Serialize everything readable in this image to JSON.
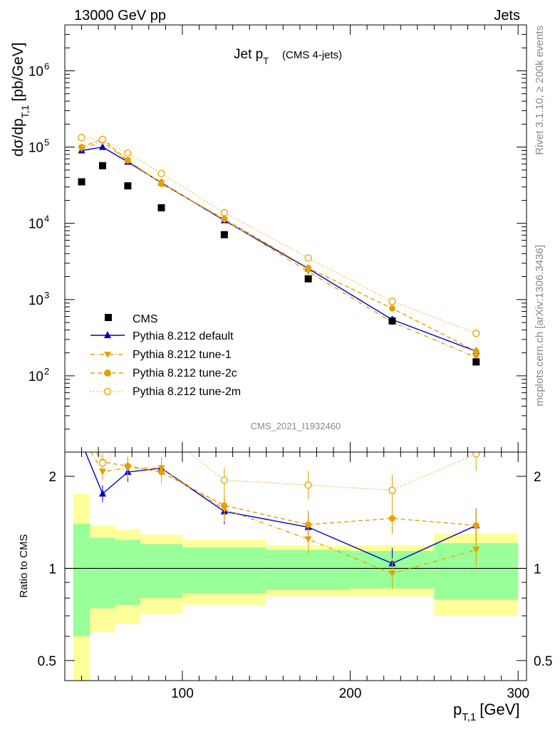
{
  "header": {
    "left": "13000 GeV pp",
    "right": "Jets"
  },
  "side_labels": {
    "rivet": "Rivet 3.1.10, ≥ 200k events",
    "mcplots": "mcplots.cern.ch [arXiv:1306.3436]"
  },
  "colors": {
    "cms": "#000000",
    "default": "#0000cc",
    "tunes": "#e6a000",
    "band_inner": "#99ff99",
    "band_outer": "#ffff99"
  },
  "chart_data": {
    "type": "scatter",
    "title_main": "Jet p",
    "title_sub": "T",
    "title_extra": "(CMS 4-jets)",
    "watermark": "CMS_2021_I1932460",
    "xlabel": {
      "main": "p",
      "sub": "T,1",
      "unit": "[GeV]"
    },
    "ylabel": {
      "main": "dσ/dp",
      "sub": "T,1",
      "unit": "[pb/GeV]"
    },
    "ratio_ylabel": "Ratio to CMS",
    "xlim": [
      30,
      305
    ],
    "ylim": [
      10,
      4000000
    ],
    "ratio_ylim": [
      0.43,
      2.4
    ],
    "x_ticks": [
      100,
      200,
      300
    ],
    "x_tick_labels": [
      "100",
      "200",
      "300"
    ],
    "y_ticks": [
      100,
      1000,
      10000,
      100000,
      1000000
    ],
    "y_tick_labels": [
      {
        "base": "10",
        "exp": "2"
      },
      {
        "base": "10",
        "exp": "3"
      },
      {
        "base": "10",
        "exp": "4"
      },
      {
        "base": "10",
        "exp": "5"
      },
      {
        "base": "10",
        "exp": "6"
      }
    ],
    "ratio_ticks": [
      0.5,
      1,
      2
    ],
    "ratio_tick_labels": [
      "0.5",
      "1",
      "2"
    ],
    "bins": [
      [
        35,
        45
      ],
      [
        45,
        60
      ],
      [
        60,
        75
      ],
      [
        75,
        100
      ],
      [
        100,
        150
      ],
      [
        150,
        200
      ],
      [
        200,
        250
      ],
      [
        250,
        300
      ]
    ],
    "x": [
      40,
      52.5,
      67.5,
      87.5,
      125,
      175,
      225,
      275
    ],
    "cms": [
      35000,
      57000,
      31000,
      16000,
      7100,
      1870,
      525,
      152
    ],
    "band_inner_half": [
      0.4,
      0.26,
      0.24,
      0.2,
      0.17,
      0.15,
      0.14,
      0.21
    ],
    "band_outer_half": [
      0.75,
      0.38,
      0.34,
      0.29,
      0.24,
      0.19,
      0.19,
      0.3
    ],
    "series": [
      {
        "name": "Pythia 8.212 default",
        "marker": "triangle-up",
        "line": "solid",
        "values": [
          90000,
          100000,
          64000,
          34000,
          10900,
          2550,
          545,
          210
        ]
      },
      {
        "name": "Pythia 8.212 tune-1",
        "marker": "triangle-down",
        "line": "dashdot",
        "values": [
          95000,
          118000,
          66000,
          34000,
          11100,
          2330,
          505,
          175
        ]
      },
      {
        "name": "Pythia 8.212 tune-2c",
        "marker": "circle",
        "line": "dashed",
        "values": [
          100000,
          127000,
          67000,
          33000,
          11400,
          2600,
          765,
          210
        ]
      },
      {
        "name": "Pythia 8.212 tune-2m",
        "marker": "circle-open",
        "line": "dotted",
        "values": [
          133000,
          126000,
          83000,
          45000,
          13800,
          3500,
          945,
          360
        ]
      }
    ],
    "legend": {
      "position": "lower-left",
      "entries": [
        "CMS",
        "Pythia 8.212 default",
        "Pythia 8.212 tune-1",
        "Pythia 8.212 tune-2c",
        "Pythia 8.212 tune-2m"
      ]
    }
  }
}
